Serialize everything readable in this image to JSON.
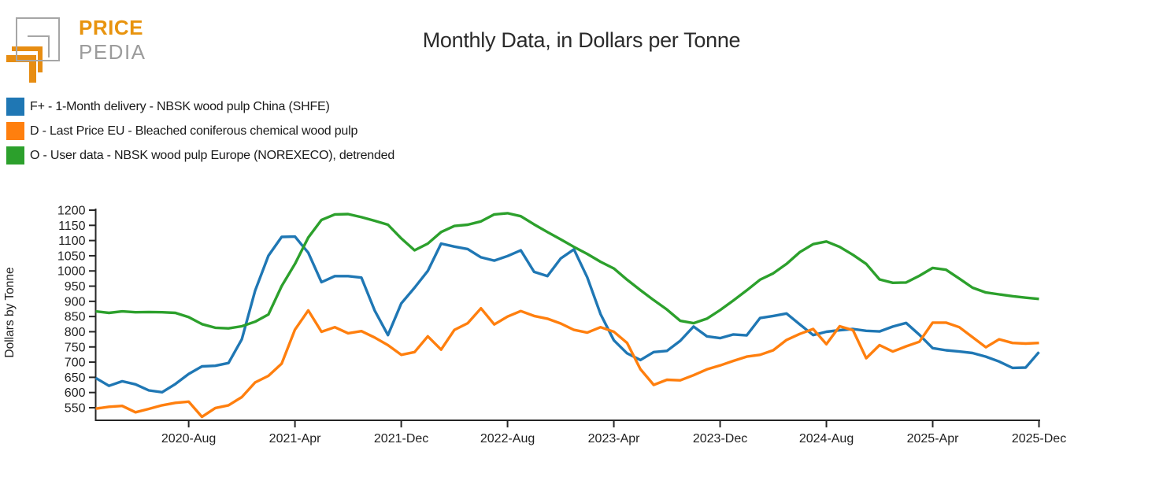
{
  "logo": {
    "brand_top": "PRICE",
    "brand_bottom": "PEDIA",
    "orange": "#e78d12",
    "gray": "#a6a6a6"
  },
  "title": "Monthly Data, in Dollars per Tonne",
  "legend": [
    {
      "label": "F+ - 1-Month delivery - NBSK wood pulp China (SHFE)",
      "color": "#1f77b4"
    },
    {
      "label": "D - Last Price EU - Bleached coniferous chemical wood pulp",
      "color": "#ff7f0e"
    },
    {
      "label": "O - User data - NBSK wood pulp Europe (NOREXECO), detrended",
      "color": "#2ca02c"
    }
  ],
  "chart_data": {
    "type": "line",
    "title": "Monthly Data, in Dollars per Tonne",
    "xlabel": "",
    "ylabel": "Dollars by Tonne",
    "grid": false,
    "legend_position": "top-left",
    "x_start": "2020-01",
    "x_frequency": "monthly",
    "n_points": 72,
    "x_tick_labels": [
      "2020-Aug",
      "2021-Apr",
      "2021-Dec",
      "2022-Aug",
      "2023-Apr",
      "2023-Dec",
      "2024-Aug",
      "2025-Apr",
      "2025-Dec"
    ],
    "x_tick_month_index": [
      7,
      15,
      23,
      31,
      39,
      47,
      55,
      63,
      71
    ],
    "y_ticks": [
      550,
      600,
      650,
      700,
      750,
      800,
      850,
      900,
      950,
      1000,
      1050,
      1100,
      1150,
      1200
    ],
    "ylim": [
      505,
      1200
    ],
    "axis_color": "#262626",
    "series": [
      {
        "name": "F+ - 1-Month delivery - NBSK wood pulp China (SHFE)",
        "color": "#1f77b4",
        "values": [
          648,
          622,
          637,
          627,
          607,
          601,
          628,
          661,
          686,
          688,
          697,
          775,
          935,
          1050,
          1112,
          1113,
          1060,
          963,
          983,
          983,
          978,
          870,
          789,
          893,
          945,
          1000,
          1090,
          1080,
          1072,
          1045,
          1034,
          1049,
          1068,
          997,
          983,
          1041,
          1071,
          979,
          858,
          772,
          729,
          707,
          733,
          737,
          770,
          817,
          785,
          779,
          791,
          788,
          845,
          852,
          860,
          824,
          789,
          800,
          805,
          809,
          803,
          801,
          817,
          829,
          790,
          746,
          739,
          735,
          730,
          718,
          702,
          681,
          682,
          733
        ]
      },
      {
        "name": "D - Last Price EU - Bleached coniferous chemical wood pulp",
        "color": "#ff7f0e",
        "values": [
          547,
          553,
          556,
          535,
          546,
          558,
          566,
          570,
          520,
          549,
          558,
          585,
          633,
          655,
          695,
          807,
          870,
          800,
          815,
          795,
          802,
          781,
          756,
          724,
          733,
          785,
          741,
          806,
          828,
          877,
          824,
          850,
          868,
          852,
          843,
          827,
          806,
          797,
          815,
          800,
          763,
          677,
          625,
          642,
          640,
          657,
          676,
          689,
          704,
          718,
          724,
          739,
          773,
          793,
          809,
          759,
          818,
          805,
          713,
          756,
          735,
          752,
          767,
          830,
          830,
          815,
          782,
          749,
          775,
          763,
          761,
          763
        ]
      },
      {
        "name": "O - User data - NBSK wood pulp Europe (NOREXECO), detrended",
        "color": "#2ca02c",
        "values": [
          867,
          862,
          867,
          864,
          865,
          864,
          862,
          848,
          825,
          813,
          811,
          818,
          833,
          857,
          950,
          1023,
          1110,
          1168,
          1186,
          1187,
          1177,
          1165,
          1152,
          1107,
          1068,
          1090,
          1128,
          1148,
          1152,
          1163,
          1186,
          1190,
          1180,
          1153,
          1128,
          1104,
          1079,
          1056,
          1030,
          1008,
          971,
          937,
          904,
          873,
          836,
          828,
          843,
          871,
          903,
          936,
          971,
          992,
          1023,
          1062,
          1088,
          1097,
          1079,
          1053,
          1023,
          972,
          961,
          962,
          984,
          1010,
          1004,
          975,
          945,
          929,
          923,
          917,
          912,
          908
        ]
      }
    ]
  }
}
